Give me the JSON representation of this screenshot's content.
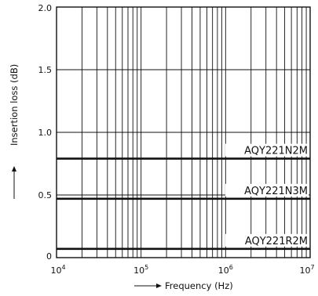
{
  "chart_data": {
    "type": "line",
    "title": "",
    "xlabel": "Frequency (Hz)",
    "ylabel": "Insertion loss (dB)",
    "xscale": "log",
    "xlim": [
      10000,
      10000000
    ],
    "ylim": [
      0,
      2.0
    ],
    "grid": true,
    "x_ticks": [
      {
        "value": 10000,
        "base": "10",
        "exp": "4"
      },
      {
        "value": 100000,
        "base": "10",
        "exp": "5"
      },
      {
        "value": 1000000,
        "base": "10",
        "exp": "6"
      },
      {
        "value": 10000000,
        "base": "10",
        "exp": "7"
      }
    ],
    "y_ticks": [
      {
        "value": 0,
        "label": "0"
      },
      {
        "value": 0.5,
        "label": "0.5"
      },
      {
        "value": 1.0,
        "label": "1.0"
      },
      {
        "value": 1.5,
        "label": "1.5"
      },
      {
        "value": 2.0,
        "label": "2.0"
      }
    ],
    "series": [
      {
        "name": "AQY221N2M",
        "x": [
          10000,
          10000000
        ],
        "y": [
          0.79,
          0.79
        ]
      },
      {
        "name": "AQY221N3M",
        "x": [
          10000,
          10000000
        ],
        "y": [
          0.47,
          0.47
        ]
      },
      {
        "name": "AQY221R2M",
        "x": [
          10000,
          10000000
        ],
        "y": [
          0.07,
          0.07
        ]
      }
    ]
  }
}
